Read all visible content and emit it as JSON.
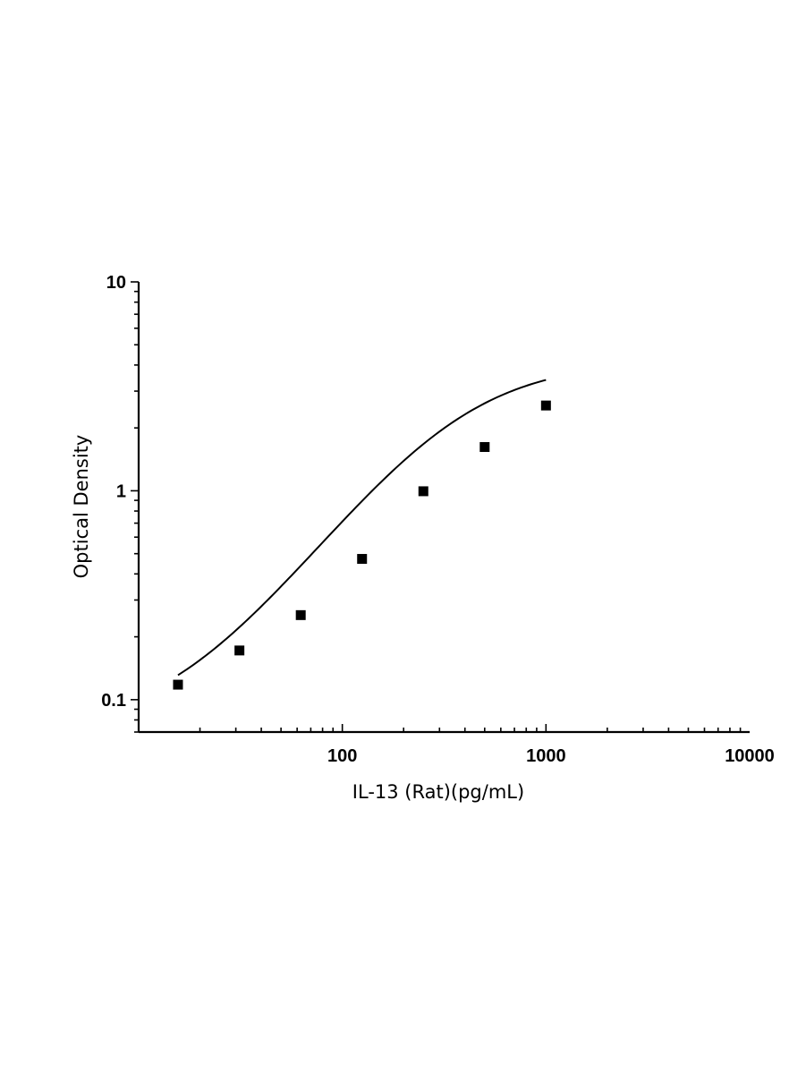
{
  "chart_data": {
    "type": "scatter",
    "xlabel": "IL-13 (Rat)(pg/mL)",
    "ylabel": "Optical Density",
    "xscale": "log",
    "yscale": "log",
    "xlim": [
      10,
      10000
    ],
    "ylim": [
      0.07,
      10
    ],
    "x_tick_labels": [
      "100",
      "1000",
      "10000"
    ],
    "x_tick_values": [
      100,
      1000,
      10000
    ],
    "y_tick_labels": [
      "0.1",
      "1",
      "10"
    ],
    "y_tick_values": [
      0.1,
      1,
      10
    ],
    "grid": false,
    "legend": "none",
    "series": [
      {
        "marker": "square",
        "color": "#000000",
        "x": [
          15.6,
          31.25,
          62.5,
          125,
          250,
          500,
          1000
        ],
        "y": [
          0.118,
          0.172,
          0.254,
          0.472,
          0.995,
          1.62,
          2.56
        ]
      }
    ],
    "fit_curve": {
      "type": "4PL",
      "color": "#000000",
      "x_range": [
        15.6,
        1000
      ],
      "bottom": 0.07,
      "top": 4.2,
      "ec50": 350,
      "hill": 1.35
    }
  }
}
